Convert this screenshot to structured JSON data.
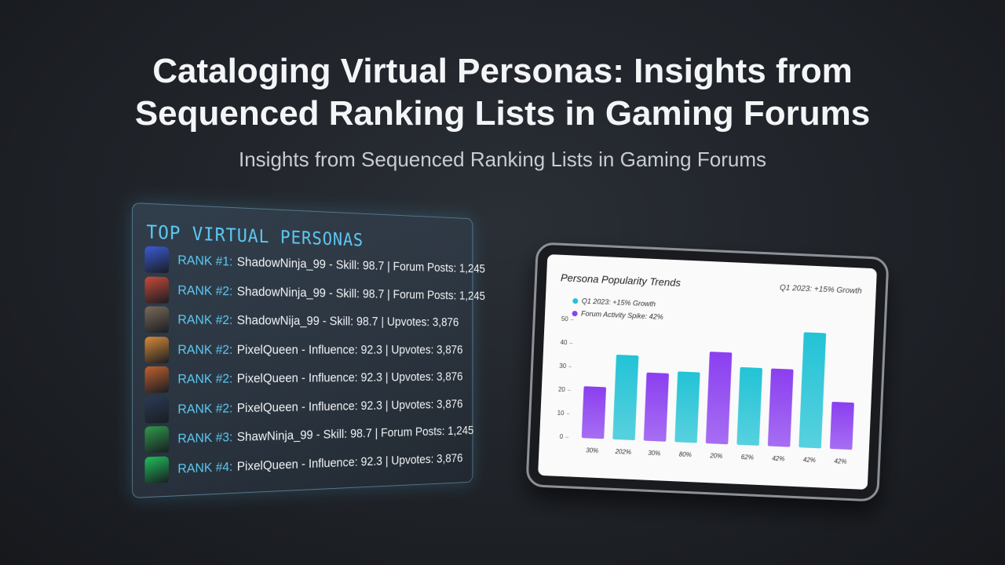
{
  "header": {
    "title": "Cataloging Virtual Personas: Insights from Sequenced Ranking Lists in Gaming Forums",
    "subtitle": "Insights from Sequenced Ranking Lists in Gaming Forums"
  },
  "panel": {
    "title": "TOP VIRTUAL PERSONAS",
    "rows": [
      {
        "rank": "RANK #1:",
        "text": "ShadowNinja_99 - Skill: 98.7 | Forum Posts: 1,245"
      },
      {
        "rank": "RANK #2:",
        "text": "ShadowNinja_99 - Skill: 98.7 | Forum Posts: 1,245"
      },
      {
        "rank": "RANK #2:",
        "text": "ShadowNija_99 - Skill: 98.7 | Upvotes: 3,876"
      },
      {
        "rank": "RANK #2:",
        "text": "PixelQueen - Influence: 92.3 | Upvotes: 3,876"
      },
      {
        "rank": "RANK #2:",
        "text": "PixelQueen - Influence: 92.3 | Upvotes: 3,876"
      },
      {
        "rank": "RANK #2:",
        "text": "PixelQueen - Influence: 92.3 | Upvotes: 3,876"
      },
      {
        "rank": "RANK #3:",
        "text": "ShawNinja_99 - Skill: 98.7 | Forum Posts: 1,245"
      },
      {
        "rank": "RANK #4:",
        "text": "PixelQueen - Influence: 92.3 | Upvotes: 3,876"
      }
    ]
  },
  "chart_data": {
    "type": "bar",
    "title": "Persona Popularity Trends",
    "annotation": "Q1 2023: +15% Growth",
    "categories": [
      "30%",
      "202%",
      "30%",
      "80%",
      "20%",
      "62%",
      "42%",
      "42%",
      "42%"
    ],
    "series": [
      {
        "name": "Q1 2023: +15% Growth",
        "color": "#22c3d6",
        "values": [
          null,
          36,
          null,
          30,
          null,
          33,
          null,
          49,
          null
        ]
      },
      {
        "name": "Forum Activity Spike: 42%",
        "color": "#8b3ff0",
        "values": [
          22,
          null,
          29,
          null,
          39,
          null,
          33,
          null,
          20
        ]
      }
    ],
    "ylim": [
      0,
      50
    ],
    "yticks": [
      0,
      10,
      20,
      30,
      40,
      50
    ]
  }
}
